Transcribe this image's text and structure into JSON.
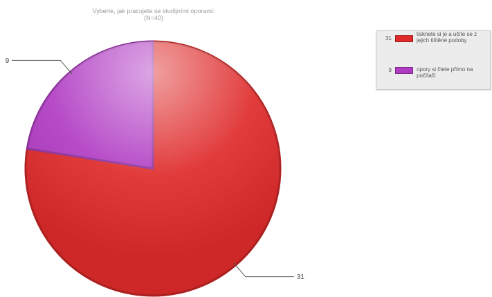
{
  "chart_data": {
    "type": "pie",
    "title": "Vyberte, jak pracujete se studijními oporami:",
    "subtitle": "(N=40)",
    "slices": [
      {
        "label": "tisknete si je a učíte se z jejich tištěné podoby",
        "value": 31,
        "color": "#df2a2a"
      },
      {
        "label": "opory si čtete přímo na počítači",
        "value": 9,
        "color": "#b03bc3"
      }
    ],
    "legend_position": "top-right"
  }
}
